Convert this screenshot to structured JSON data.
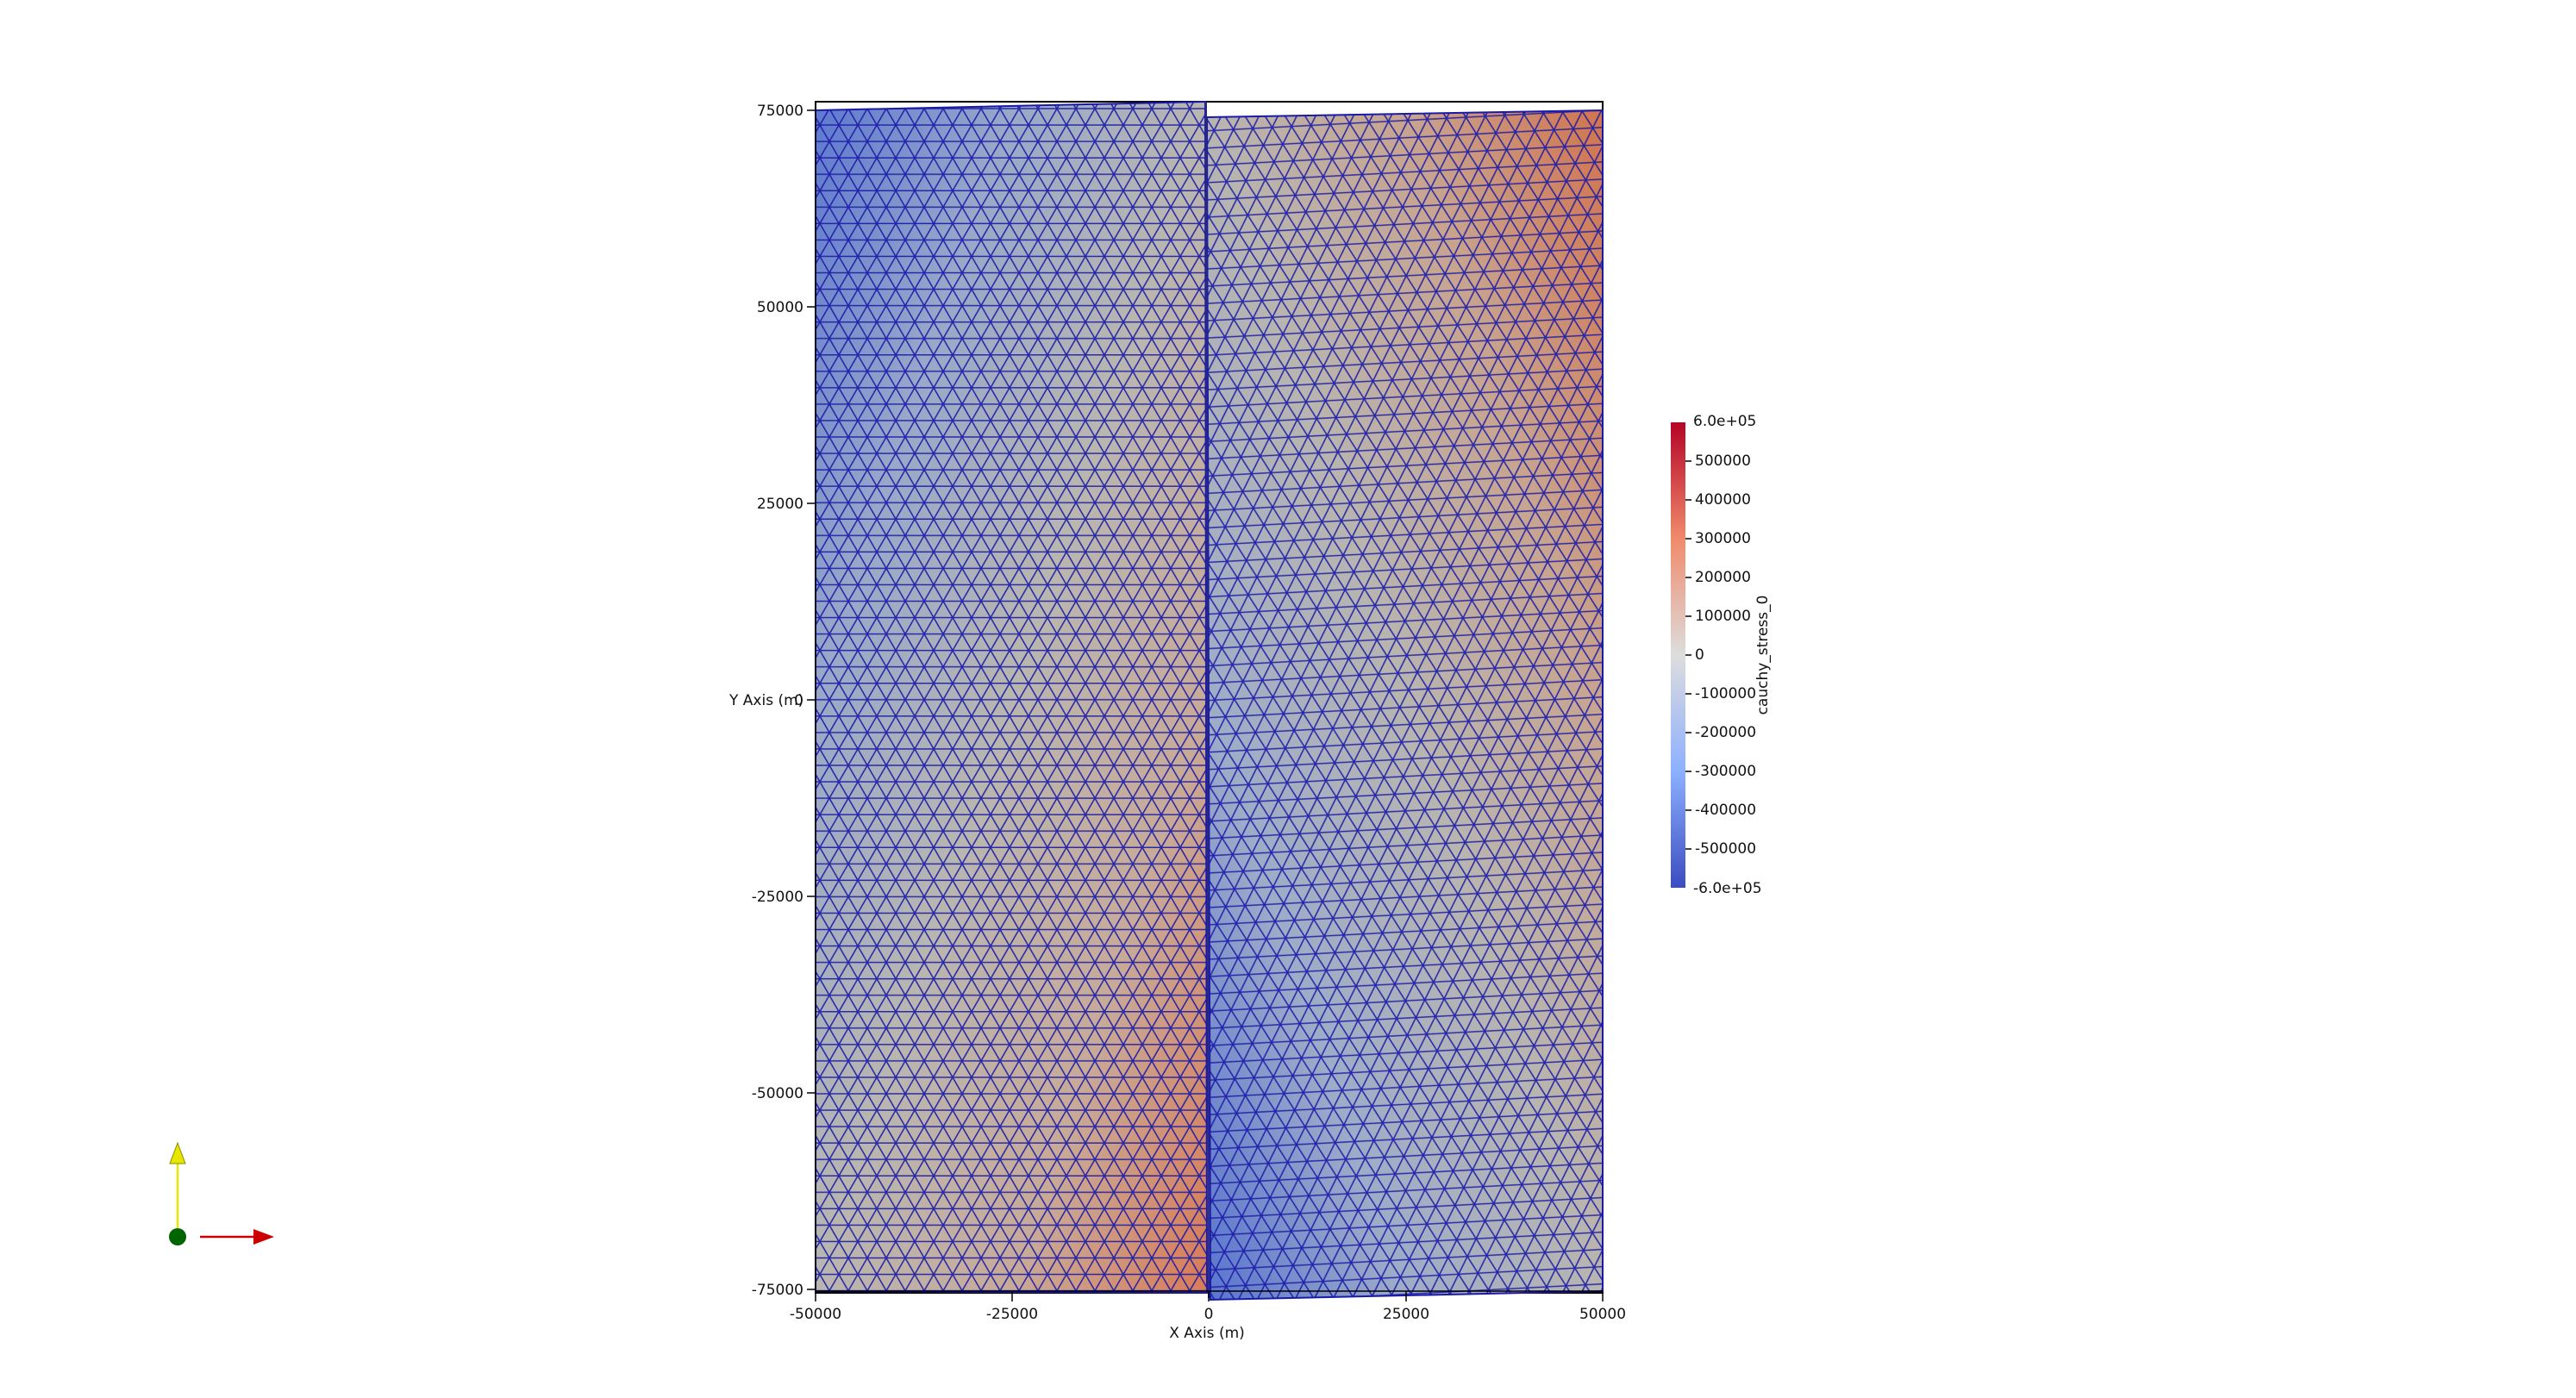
{
  "axes": {
    "x_title": "X Axis (m)",
    "y_title": "Y Axis (m)",
    "x_ticks": [
      "-50000",
      "-25000",
      "0",
      "25000",
      "50000"
    ],
    "y_ticks": [
      "75000",
      "50000",
      "25000",
      "0",
      "-25000",
      "-50000",
      "-75000"
    ],
    "x_range": [
      -50000,
      50000
    ],
    "y_range": [
      -75000,
      75000
    ]
  },
  "colorbar": {
    "title": "cauchy_stress_0",
    "max_label": "6.0e+05",
    "min_label": "-6.0e+05",
    "labels": [
      "500000",
      "400000",
      "300000",
      "200000",
      "100000",
      "0",
      "-100000",
      "-200000",
      "-300000",
      "-400000",
      "-500000"
    ],
    "colors": {
      "high": "#b40426",
      "mid": "#dddddd",
      "low": "#3b4cc0"
    }
  },
  "mesh": {
    "edge_color": "#1a1aa6",
    "left_block": "x < 0",
    "right_block": "x > 0"
  },
  "orientation_axes": {
    "y_color": "#e6e600",
    "x_color": "#cc0000",
    "z_color": "#006400"
  }
}
